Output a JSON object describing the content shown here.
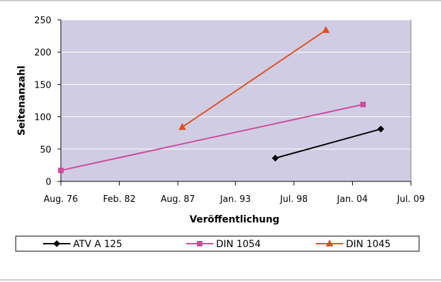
{
  "chart_data": {
    "type": "line",
    "title": "",
    "xlabel": "Veröffentlichung",
    "ylabel": "Seitenanzahl",
    "xlim": [
      "1976-08",
      "2009-07"
    ],
    "ylim": [
      0,
      250
    ],
    "y_ticks": [
      0,
      50,
      100,
      150,
      200,
      250
    ],
    "x_ticks": [
      {
        "date": "1976-08",
        "label": "Aug. 76"
      },
      {
        "date": "1982-02",
        "label": "Feb. 82"
      },
      {
        "date": "1987-08",
        "label": "Aug. 87"
      },
      {
        "date": "1993-01",
        "label": "Jan. 93"
      },
      {
        "date": "1998-07",
        "label": "Jul. 98"
      },
      {
        "date": "2004-01",
        "label": "Jan. 04"
      },
      {
        "date": "2009-07",
        "label": "Jul. 09"
      }
    ],
    "grid": "horizontal",
    "plot_background": "#d0cce3",
    "legend_position": "bottom",
    "series": [
      {
        "name": "ATV A 125",
        "color": "#000000",
        "marker": "diamond",
        "points": [
          {
            "x": "1996-10",
            "y": 36
          },
          {
            "x": "2006-09",
            "y": 81
          }
        ]
      },
      {
        "name": "DIN 1054",
        "color": "#cc4c9c",
        "marker": "square",
        "points": [
          {
            "x": "1976-08",
            "y": 17
          },
          {
            "x": "2005-01",
            "y": 119
          }
        ]
      },
      {
        "name": "DIN 1045",
        "color": "#e0501e",
        "marker": "triangle",
        "points": [
          {
            "x": "1988-01",
            "y": 84
          },
          {
            "x": "2001-07",
            "y": 234
          }
        ]
      }
    ]
  }
}
